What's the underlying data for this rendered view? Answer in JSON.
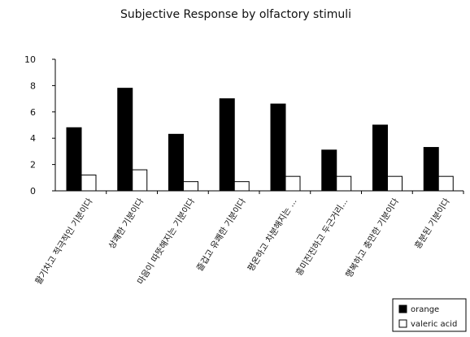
{
  "chart_data": {
    "type": "bar",
    "title": "Subjective Response by olfactory stimuli",
    "xlabel": "",
    "ylabel": "",
    "ylim": [
      0,
      10
    ],
    "yticks": [
      "0",
      "2",
      "4",
      "6",
      "8",
      "10"
    ],
    "categories": [
      "활기차고 적극적인 기분이다",
      "상쾌한 기분이다",
      "마음이 따뜻해지는 기분이다",
      "즐겁고 유쾌한 기분이다",
      "평온하고 차분해지는 ...",
      "흥미진진하고 두근거리...",
      "행복하고 충만한 기분이다",
      "흥분된 기분이다"
    ],
    "series": [
      {
        "name": "orange",
        "color": "#000000",
        "values": [
          4.8,
          7.8,
          4.3,
          7.0,
          6.6,
          3.1,
          5.0,
          3.3
        ]
      },
      {
        "name": "valeric acid",
        "color": "#ffffff",
        "values": [
          1.2,
          1.6,
          0.7,
          0.7,
          1.1,
          1.1,
          1.1,
          1.1
        ]
      }
    ],
    "grid": false,
    "legend": "bottom-right"
  }
}
